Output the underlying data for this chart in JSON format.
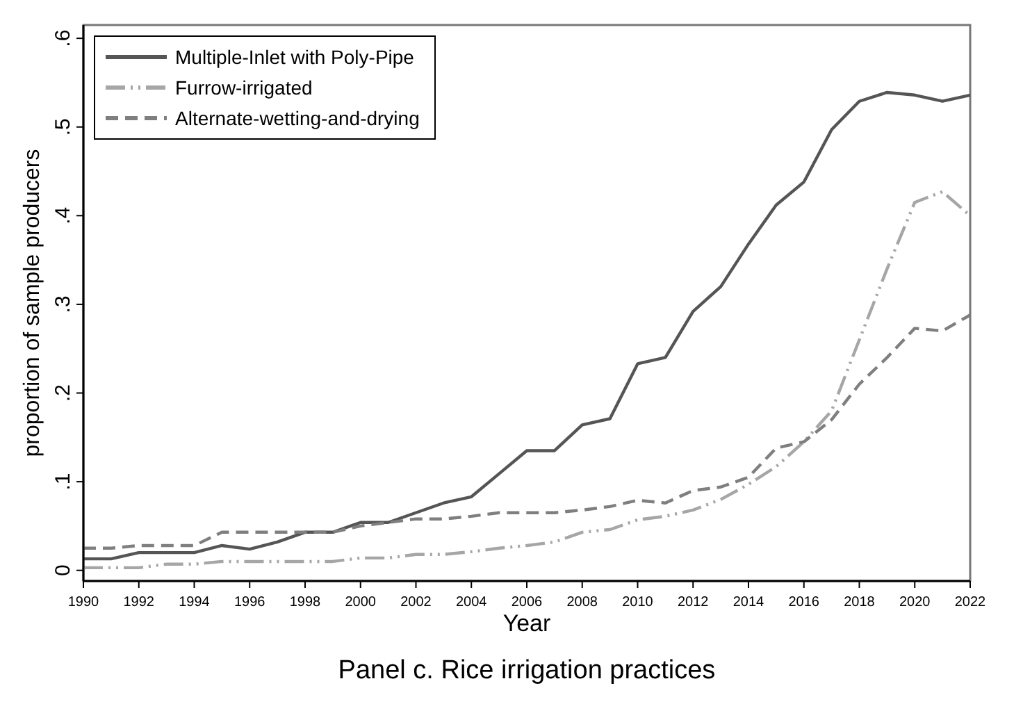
{
  "chart_data": {
    "type": "line",
    "xlabel": "Year",
    "ylabel": "proportion of sample producers",
    "annotations": [
      "Panel c. Rice irrigation practices"
    ],
    "x": [
      1990,
      1991,
      1992,
      1993,
      1994,
      1995,
      1996,
      1997,
      1998,
      1999,
      2000,
      2001,
      2002,
      2003,
      2004,
      2005,
      2006,
      2007,
      2008,
      2009,
      2010,
      2011,
      2012,
      2013,
      2014,
      2015,
      2016,
      2017,
      2018,
      2019,
      2020,
      2021,
      2022
    ],
    "series": [
      {
        "name": "Multiple-Inlet with Poly-Pipe",
        "color": "#555555",
        "line_style": "solid",
        "values": [
          0.013,
          0.013,
          0.02,
          0.02,
          0.02,
          0.028,
          0.024,
          0.032,
          0.043,
          0.043,
          0.054,
          0.054,
          0.065,
          0.076,
          0.083,
          0.109,
          0.135,
          0.135,
          0.164,
          0.171,
          0.233,
          0.24,
          0.292,
          0.32,
          0.368,
          0.412,
          0.438,
          0.497,
          0.529,
          0.539,
          0.536,
          0.529,
          0.536
        ]
      },
      {
        "name": "Furrow-irrigated",
        "color": "#a6a6a6",
        "line_style": "dotted",
        "values": [
          0.003,
          0.003,
          0.003,
          0.007,
          0.007,
          0.01,
          0.01,
          0.01,
          0.01,
          0.01,
          0.014,
          0.014,
          0.018,
          0.018,
          0.021,
          0.025,
          0.028,
          0.032,
          0.043,
          0.046,
          0.057,
          0.061,
          0.068,
          0.08,
          0.097,
          0.117,
          0.145,
          0.18,
          0.26,
          0.34,
          0.415,
          0.427,
          0.4
        ]
      },
      {
        "name": "Alternate-wetting-and-drying",
        "color": "#7f7f7f",
        "line_style": "dashed",
        "values": [
          0.025,
          0.025,
          0.028,
          0.028,
          0.028,
          0.043,
          0.043,
          0.043,
          0.043,
          0.043,
          0.05,
          0.054,
          0.058,
          0.058,
          0.061,
          0.065,
          0.065,
          0.065,
          0.068,
          0.072,
          0.079,
          0.076,
          0.09,
          0.094,
          0.105,
          0.138,
          0.145,
          0.17,
          0.21,
          0.24,
          0.273,
          0.27,
          0.288
        ]
      }
    ],
    "xlim": [
      1990,
      2022
    ],
    "xticks": [
      1990,
      1992,
      1994,
      1996,
      1998,
      2000,
      2002,
      2004,
      2006,
      2008,
      2010,
      2012,
      2014,
      2016,
      2018,
      2020,
      2022
    ],
    "ylim": [
      -0.012,
      0.615
    ],
    "yticks": [
      0,
      {
        "value": 0.1,
        "label": ".1"
      },
      {
        "value": 0.2,
        "label": ".2"
      },
      {
        "value": 0.3,
        "label": ".3"
      },
      {
        "value": 0.4,
        "label": ".4"
      },
      {
        "value": 0.5,
        "label": ".5"
      },
      {
        "value": 0.6,
        "label": ".6"
      }
    ],
    "grid": false,
    "legend": "top left",
    "marker": "none"
  }
}
